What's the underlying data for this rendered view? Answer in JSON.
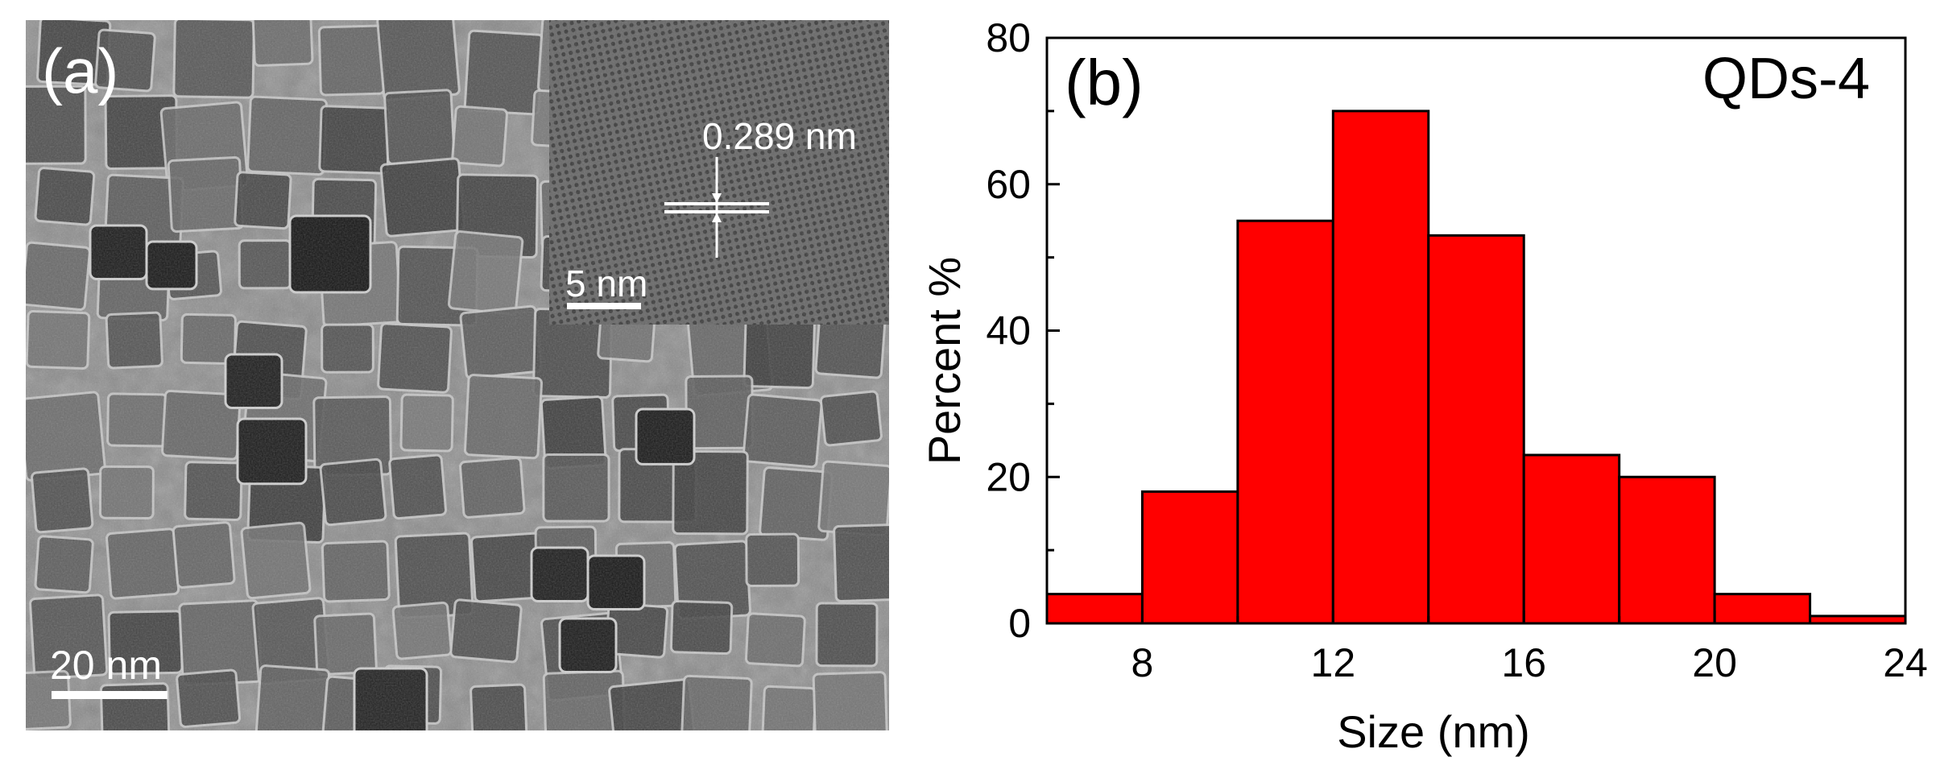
{
  "panel_a": {
    "label": "(a)",
    "scale_bar_label": "20 nm",
    "inset": {
      "scale_bar_label": "5 nm",
      "lattice_spacing_label": "0.289 nm"
    }
  },
  "chart_data": {
    "type": "bar",
    "panel_label": "(b)",
    "annotation": "QDs-4",
    "xlabel": "Size (nm)",
    "ylabel": "Percent %",
    "xlim": [
      6,
      24
    ],
    "ylim": [
      0,
      80
    ],
    "xticks": [
      8,
      12,
      16,
      20,
      24
    ],
    "yticks": [
      0,
      20,
      40,
      60,
      80
    ],
    "bins": [
      {
        "start": 6,
        "end": 8,
        "value": 4
      },
      {
        "start": 8,
        "end": 10,
        "value": 18
      },
      {
        "start": 10,
        "end": 12,
        "value": 55
      },
      {
        "start": 12,
        "end": 14,
        "value": 70
      },
      {
        "start": 14,
        "end": 16,
        "value": 53
      },
      {
        "start": 16,
        "end": 18,
        "value": 23
      },
      {
        "start": 18,
        "end": 20,
        "value": 20
      },
      {
        "start": 20,
        "end": 22,
        "value": 4
      },
      {
        "start": 22,
        "end": 24,
        "value": 1
      }
    ],
    "bar_color": "#ff0000",
    "grid": false
  }
}
